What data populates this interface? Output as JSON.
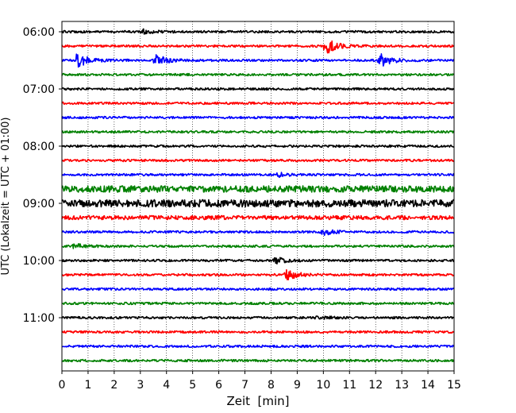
{
  "chart_data": {
    "type": "line",
    "title": "",
    "xlabel": "Zeit  [min]",
    "ylabel": "UTC (Lokalzeit = UTC + 01:00)",
    "xlim": [
      0,
      15
    ],
    "x_ticks": [
      "0",
      "1",
      "2",
      "3",
      "4",
      "5",
      "6",
      "7",
      "8",
      "9",
      "10",
      "11",
      "12",
      "13",
      "14",
      "15"
    ],
    "y_ticks": [
      "06:00",
      "07:00",
      "08:00",
      "09:00",
      "10:00",
      "11:00"
    ],
    "grid": "vertical dotted",
    "colors": [
      "#000000",
      "#ff0000",
      "#0000ff",
      "#008000"
    ],
    "series": [
      {
        "start": "06:00",
        "color": "#000000",
        "events": [
          [
            3.1,
            2.5
          ]
        ]
      },
      {
        "start": "06:15",
        "color": "#ff0000",
        "events": [
          [
            10.1,
            10
          ]
        ]
      },
      {
        "start": "06:30",
        "color": "#0000ff",
        "events": [
          [
            0.6,
            10
          ],
          [
            3.6,
            7
          ],
          [
            12.2,
            8
          ]
        ]
      },
      {
        "start": "06:45",
        "color": "#008000",
        "events": []
      },
      {
        "start": "07:00",
        "color": "#000000",
        "events": []
      },
      {
        "start": "07:15",
        "color": "#ff0000",
        "events": []
      },
      {
        "start": "07:30",
        "color": "#0000ff",
        "events": []
      },
      {
        "start": "07:45",
        "color": "#008000",
        "events": []
      },
      {
        "start": "08:00",
        "color": "#000000",
        "events": []
      },
      {
        "start": "08:15",
        "color": "#ff0000",
        "events": []
      },
      {
        "start": "08:30",
        "color": "#0000ff",
        "events": [
          [
            8.3,
            2
          ]
        ]
      },
      {
        "start": "08:45",
        "color": "#008000",
        "events": [],
        "noise": 4
      },
      {
        "start": "09:00",
        "color": "#000000",
        "events": [],
        "noise": 4.5
      },
      {
        "start": "09:15",
        "color": "#ff0000",
        "events": [],
        "noise": 2.5
      },
      {
        "start": "09:30",
        "color": "#0000ff",
        "events": [
          [
            10,
            4
          ]
        ]
      },
      {
        "start": "09:45",
        "color": "#008000",
        "events": [
          [
            0.5,
            3
          ]
        ]
      },
      {
        "start": "10:00",
        "color": "#000000",
        "events": [
          [
            8.2,
            3.5
          ]
        ]
      },
      {
        "start": "10:15",
        "color": "#ff0000",
        "events": [
          [
            8.6,
            7
          ]
        ]
      },
      {
        "start": "10:30",
        "color": "#0000ff",
        "events": []
      },
      {
        "start": "10:45",
        "color": "#008000",
        "events": []
      },
      {
        "start": "11:00",
        "color": "#000000",
        "events": [
          [
            9.8,
            2
          ]
        ]
      },
      {
        "start": "11:15",
        "color": "#ff0000",
        "events": []
      },
      {
        "start": "11:30",
        "color": "#0000ff",
        "events": []
      },
      {
        "start": "11:45",
        "color": "#008000",
        "events": []
      }
    ]
  }
}
